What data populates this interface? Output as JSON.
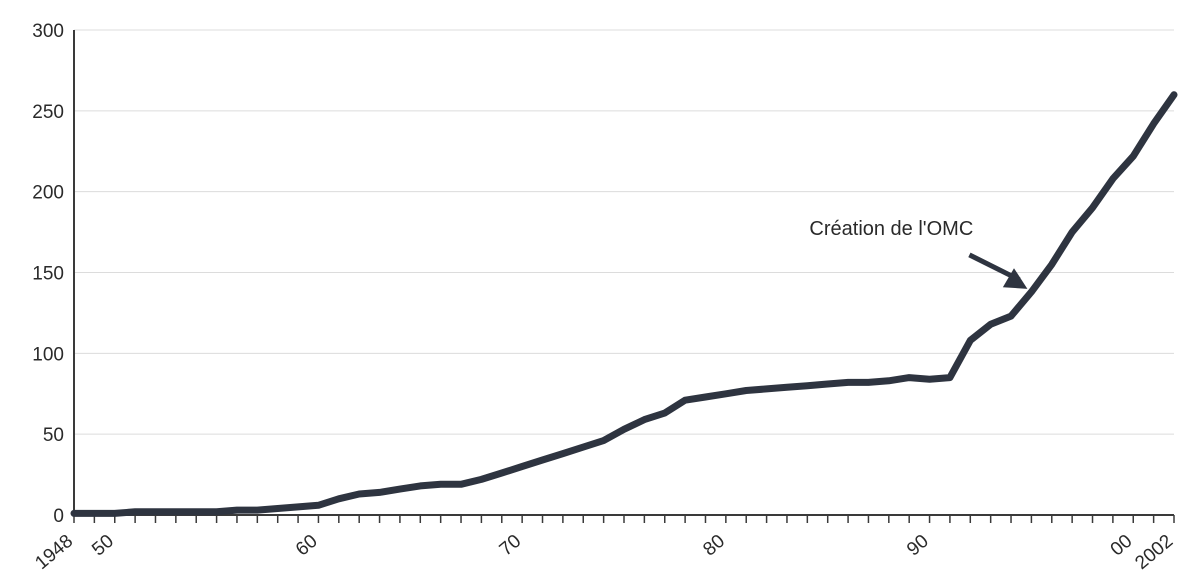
{
  "chart_data": {
    "type": "line",
    "title": "",
    "xlabel": "",
    "ylabel": "",
    "xlim": [
      1948,
      2002
    ],
    "ylim": [
      0,
      300
    ],
    "yticks": [
      0,
      50,
      100,
      150,
      200,
      250,
      300
    ],
    "xtick_labels": [
      {
        "value": 1948,
        "label": "1948"
      },
      {
        "value": 1950,
        "label": "50"
      },
      {
        "value": 1960,
        "label": "60"
      },
      {
        "value": 1970,
        "label": "70"
      },
      {
        "value": 1980,
        "label": "80"
      },
      {
        "value": 1990,
        "label": "90"
      },
      {
        "value": 2000,
        "label": "00"
      },
      {
        "value": 2002,
        "label": "2002"
      }
    ],
    "grid": true,
    "legend": "none",
    "series": [
      {
        "x": [
          1948,
          1949,
          1950,
          1951,
          1952,
          1953,
          1954,
          1955,
          1956,
          1957,
          1958,
          1959,
          1960,
          1961,
          1962,
          1963,
          1964,
          1965,
          1966,
          1967,
          1968,
          1969,
          1970,
          1971,
          1972,
          1973,
          1974,
          1975,
          1976,
          1977,
          1978,
          1979,
          1980,
          1981,
          1982,
          1983,
          1984,
          1985,
          1986,
          1987,
          1988,
          1989,
          1990,
          1991,
          1992,
          1993,
          1994,
          1995,
          1996,
          1997,
          1998,
          1999,
          2000,
          2001,
          2002
        ],
        "values": [
          1,
          1,
          1,
          2,
          2,
          2,
          2,
          2,
          3,
          3,
          4,
          5,
          6,
          10,
          13,
          14,
          16,
          18,
          19,
          19,
          22,
          26,
          30,
          34,
          38,
          42,
          46,
          53,
          59,
          63,
          71,
          73,
          75,
          77,
          78,
          79,
          80,
          81,
          82,
          82,
          83,
          85,
          84,
          85,
          108,
          118,
          123,
          138,
          155,
          175,
          190,
          208,
          222,
          242,
          260
        ],
        "color": "#2e3440"
      }
    ],
    "annotations": [
      {
        "text": "Création de l'OMC",
        "x": 1995,
        "y": 130
      }
    ]
  }
}
